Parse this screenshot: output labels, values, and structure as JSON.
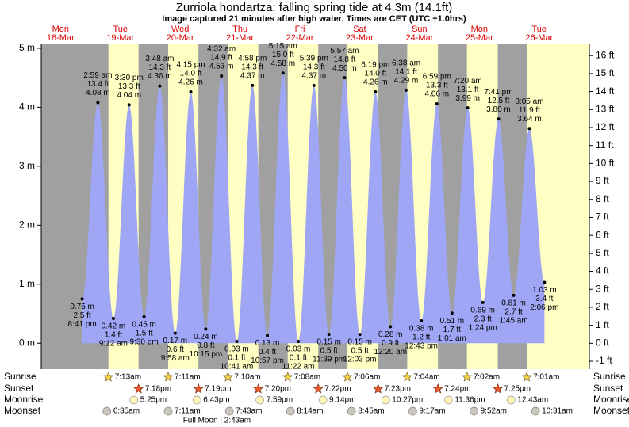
{
  "chart_data": {
    "type": "tide",
    "title": "Zurriola hondartza: falling  spring tide at 4.3m (14.1ft)",
    "subtitle": "Image captured 21 minutes after high water. Times are CET (UTC +1.0hrs)",
    "colors": {
      "night": "#a0a0a0",
      "day": "#ffffc4",
      "tide": "#9ea6f5",
      "days": "#dd0000"
    },
    "ylim": [
      -0.44,
      5.08
    ],
    "yticks": [
      {
        "value": 0,
        "label": "0 m"
      },
      {
        "value": 1,
        "label": "1 m"
      },
      {
        "value": 2,
        "label": "2 m"
      },
      {
        "value": 3,
        "label": "3 m"
      },
      {
        "value": 4,
        "label": "4 m"
      },
      {
        "value": 5,
        "label": "5 m"
      }
    ],
    "y2lim": [
      -1.44,
      16.67
    ],
    "y2ticks": [
      {
        "value": -1,
        "label": "-1 ft"
      },
      {
        "value": 0,
        "label": "0 ft"
      },
      {
        "value": 1,
        "label": "1 ft"
      },
      {
        "value": 2,
        "label": "2 ft"
      },
      {
        "value": 3,
        "label": "3 ft"
      },
      {
        "value": 4,
        "label": "4 ft"
      },
      {
        "value": 5,
        "label": "5 ft"
      },
      {
        "value": 6,
        "label": "6 ft"
      },
      {
        "value": 7,
        "label": "7 ft"
      },
      {
        "value": 8,
        "label": "8 ft"
      },
      {
        "value": 9,
        "label": "9 ft"
      },
      {
        "value": 10,
        "label": "10 ft"
      },
      {
        "value": 11,
        "label": "11 ft"
      },
      {
        "value": 12,
        "label": "12 ft"
      },
      {
        "value": 13,
        "label": "13 ft"
      },
      {
        "value": 14,
        "label": "14 ft"
      },
      {
        "value": 15,
        "label": "15 ft"
      },
      {
        "value": 16,
        "label": "16 ft"
      }
    ],
    "row_labels": {
      "sunrise": "Sunrise",
      "sunset": "Sunset",
      "moonrise": "Moonrise",
      "moonset": "Moonset"
    },
    "days": [
      {
        "weekday": "Mon",
        "date": "18-Mar",
        "tides": [
          {
            "time": "8:41 pm",
            "height": 0.75,
            "height_label": "0.75 m",
            "feet": "2.5 ft"
          }
        ]
      },
      {
        "weekday": "Tue",
        "date": "19-Mar",
        "sunrise": "7:13am",
        "sunset": "7:18pm",
        "moonrise": "5:25pm",
        "moonset": "6:35am",
        "tides": [
          {
            "time": "2:59 am",
            "height": 4.08,
            "height_label": "4.08 m",
            "feet": "13.4 ft"
          },
          {
            "time": "9:12 am",
            "height": 0.42,
            "height_label": "0.42 m",
            "feet": "1.4 ft"
          },
          {
            "time": "3:30 pm",
            "height": 4.04,
            "height_label": "4.04 m",
            "feet": "13.3 ft"
          },
          {
            "time": "9:30 pm",
            "height": 0.45,
            "height_label": "0.45 m",
            "feet": "1.5 ft"
          }
        ]
      },
      {
        "weekday": "Wed",
        "date": "20-Mar",
        "sunrise": "7:11am",
        "sunset": "7:19pm",
        "moonrise": "6:43pm",
        "moonset": "7:11am",
        "tides": [
          {
            "time": "3:48 am",
            "height": 4.36,
            "height_label": "4.36 m",
            "feet": "14.3 ft"
          },
          {
            "time": "9:58 am",
            "height": 0.17,
            "height_label": "0.17 m",
            "feet": "0.6 ft"
          },
          {
            "time": "4:15 pm",
            "height": 4.26,
            "height_label": "4.26 m",
            "feet": "14.0 ft"
          },
          {
            "time": "10:15 pm",
            "height": 0.24,
            "height_label": "0.24 m",
            "feet": "0.8 ft"
          }
        ]
      },
      {
        "weekday": "Thu",
        "date": "21-Mar",
        "sunrise": "7:10am",
        "sunset": "7:20pm",
        "moonrise": "7:59pm",
        "moonset": "7:43am",
        "moon_phase": "Full Moon | 2:43am",
        "tides": [
          {
            "time": "4:32 am",
            "height": 4.53,
            "height_label": "4.53 m",
            "feet": "14.9 ft"
          },
          {
            "time": "10:41 am",
            "height": 0.03,
            "height_label": "0.03 m",
            "feet": "0.1 ft"
          },
          {
            "time": "4:58 pm",
            "height": 4.37,
            "height_label": "4.37 m",
            "feet": "14.3 ft"
          },
          {
            "time": "10:57 pm",
            "height": 0.13,
            "height_label": "0.13 m",
            "feet": "0.4 ft"
          }
        ]
      },
      {
        "weekday": "Fri",
        "date": "22-Mar",
        "sunrise": "7:08am",
        "sunset": "7:22pm",
        "moonrise": "9:14pm",
        "moonset": "8:14am",
        "tides": [
          {
            "time": "5:15 am",
            "height": 4.58,
            "height_label": "4.58 m",
            "feet": "15.0 ft"
          },
          {
            "time": "11:22 am",
            "height": 0.03,
            "height_label": "0.03 m",
            "feet": "0.1 ft"
          },
          {
            "time": "5:39 pm",
            "height": 4.37,
            "height_label": "4.37 m",
            "feet": "14.3 ft"
          },
          {
            "time": "11:39 pm",
            "height": 0.15,
            "height_label": "0.15 m",
            "feet": "0.5 ft"
          }
        ]
      },
      {
        "weekday": "Sat",
        "date": "23-Mar",
        "sunrise": "7:06am",
        "sunset": "7:23pm",
        "moonrise": "10:27pm",
        "moonset": "8:45am",
        "tides": [
          {
            "time": "5:57 am",
            "height": 4.5,
            "height_label": "4.50 m",
            "feet": "14.8 ft"
          },
          {
            "time": "12:03 pm",
            "height": 0.15,
            "height_label": "0.15 m",
            "feet": "0.5 ft"
          },
          {
            "time": "6:19 pm",
            "height": 4.26,
            "height_label": "4.26 m",
            "feet": "14.0 ft"
          }
        ]
      },
      {
        "weekday": "Sun",
        "date": "24-Mar",
        "sunrise": "7:04am",
        "sunset": "7:24pm",
        "moonrise": "11:36pm",
        "moonset": "9:17am",
        "tides": [
          {
            "time": "12:20 am",
            "height": 0.28,
            "height_label": "0.28 m",
            "feet": "0.9 ft"
          },
          {
            "time": "6:38 am",
            "height": 4.29,
            "height_label": "4.29 m",
            "feet": "14.1 ft"
          },
          {
            "time": "12:43 pm",
            "height": 0.38,
            "height_label": "0.38 m",
            "feet": "1.2 ft"
          },
          {
            "time": "6:59 pm",
            "height": 4.06,
            "height_label": "4.06 m",
            "feet": "13.3 ft"
          }
        ]
      },
      {
        "weekday": "Mon",
        "date": "25-Mar",
        "sunrise": "7:02am",
        "sunset": "7:25pm",
        "moonset": "9:52am",
        "tides": [
          {
            "time": "1:01 am",
            "height": 0.51,
            "height_label": "0.51 m",
            "feet": "1.7 ft"
          },
          {
            "time": "7:20 am",
            "height": 3.99,
            "height_label": "3.99 m",
            "feet": "13.1 ft"
          },
          {
            "time": "1:24 pm",
            "height": 0.69,
            "height_label": "0.69 m",
            "feet": "2.3 ft"
          },
          {
            "time": "7:41 pm",
            "height": 3.8,
            "height_label": "3.80 m",
            "feet": "12.5 ft"
          }
        ]
      },
      {
        "weekday": "Tue",
        "date": "26-Mar",
        "sunrise": "7:01am",
        "moonrise": "12:43am",
        "moonset": "10:31am",
        "tides": [
          {
            "time": "1:45 am",
            "height": 0.81,
            "height_label": "0.81 m",
            "feet": "2.7 ft"
          },
          {
            "time": "8:05 am",
            "height": 3.64,
            "height_label": "3.64 m",
            "feet": "11.9 ft"
          },
          {
            "time": "2:06 pm",
            "height": 1.03,
            "height_label": "1.03 m",
            "feet": "3.4 ft"
          }
        ]
      }
    ]
  }
}
